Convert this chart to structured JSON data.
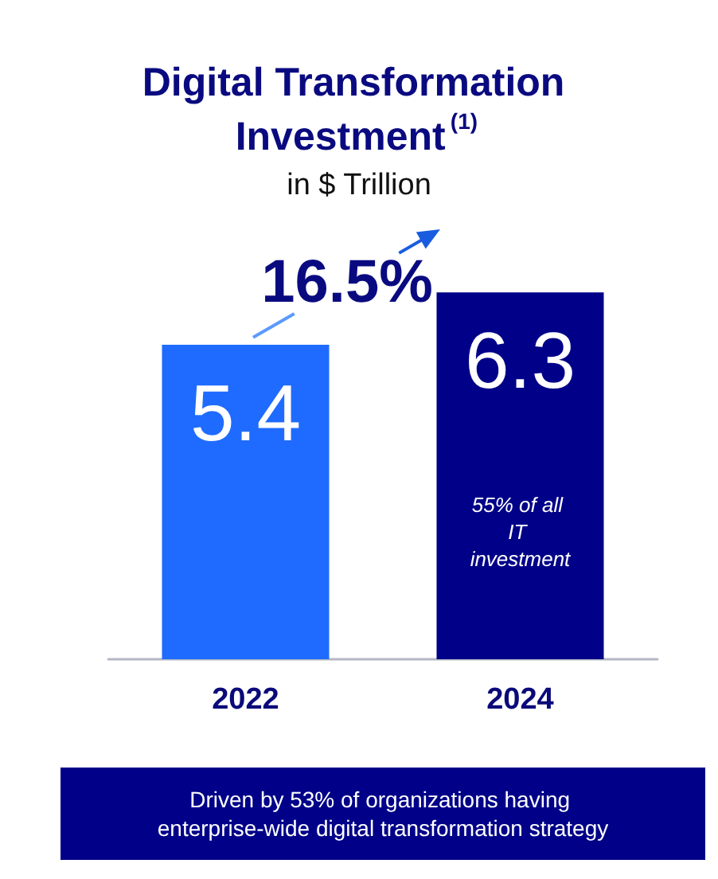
{
  "chart_data": {
    "type": "bar",
    "title": "Digital Transformation Investment$^{(1)}$",
    "subtitle": "in $ Trillion",
    "categories": [
      "2022",
      "2024"
    ],
    "values": [
      5.4,
      6.3
    ],
    "colors": [
      "#1f6bff",
      "#000088"
    ],
    "data_labels": true,
    "annotations": [
      "16.5%",
      "55% of all IT investment",
      "Driven by 53% of organizations having enterprise-wide digital transformation strategy"
    ]
  }
}
